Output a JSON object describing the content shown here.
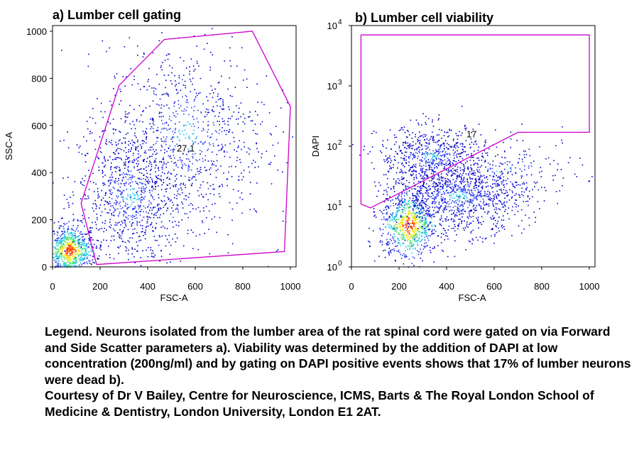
{
  "chart_data": [
    {
      "type": "scatter",
      "title": "a) Lumber cell gating",
      "xlabel": "FSC-A",
      "ylabel": "SSC-A",
      "xlim": [
        0,
        1024
      ],
      "ylim": [
        0,
        1024
      ],
      "xticks": [
        0,
        200,
        400,
        600,
        800,
        1000
      ],
      "yticks": [
        0,
        200,
        400,
        600,
        800,
        1000
      ],
      "xtick_labels": [
        "0",
        "200",
        "400",
        "600",
        "800",
        "1000"
      ],
      "ytick_labels": [
        "0",
        "200",
        "400",
        "600",
        "800",
        "1000"
      ],
      "gate": {
        "label": "27.1",
        "label_at": [
          560,
          490
        ],
        "vertices": [
          [
            185,
            10
          ],
          [
            120,
            270
          ],
          [
            280,
            770
          ],
          [
            470,
            965
          ],
          [
            840,
            1000
          ],
          [
            1000,
            680
          ],
          [
            975,
            65
          ],
          [
            185,
            10
          ]
        ]
      },
      "density_regions": [
        {
          "x_mean": 70,
          "y_mean": 70,
          "x_sd": 55,
          "y_sd": 55,
          "share": 0.3
        },
        {
          "x_mean": 330,
          "y_mean": 300,
          "x_sd": 110,
          "y_sd": 150,
          "share": 0.35
        },
        {
          "x_mean": 560,
          "y_mean": 560,
          "x_sd": 170,
          "y_sd": 190,
          "share": 0.3
        },
        {
          "x_mean": 510,
          "y_mean": 500,
          "x_sd": 330,
          "y_sd": 330,
          "share": 0.05
        }
      ],
      "point_colors": [
        "#0000cc",
        "#2a3df0",
        "#19c3e6",
        "#3ee07a",
        "#f2e600",
        "#ff4400"
      ]
    },
    {
      "type": "scatter",
      "title": "b) Lumber cell viability",
      "xlabel": "FSC-A",
      "ylabel": "DAPI",
      "y_scale": "log",
      "xlim": [
        0,
        1024
      ],
      "ylim": [
        1,
        10000
      ],
      "xticks": [
        0,
        200,
        400,
        600,
        800,
        1000
      ],
      "yticks": [
        1,
        10,
        100,
        1000,
        10000
      ],
      "xtick_labels": [
        "0",
        "200",
        "400",
        "600",
        "800",
        "1000"
      ],
      "ytick_labels": [
        "10^0",
        "10^1",
        "10^2",
        "10^3",
        "10^4"
      ],
      "gate": {
        "label": "17",
        "label_at": [
          505,
          140
        ],
        "vertices": [
          [
            40,
            7000
          ],
          [
            1000,
            7000
          ],
          [
            1000,
            170
          ],
          [
            700,
            170
          ],
          [
            80,
            9.5
          ],
          [
            40,
            11
          ],
          [
            40,
            7000
          ]
        ]
      },
      "density_regions": [
        {
          "x_mean": 240,
          "y_mean": 5,
          "x_sd": 60,
          "y_log_sd": 0.3,
          "share": 0.3
        },
        {
          "x_mean": 450,
          "y_mean": 15,
          "x_sd": 140,
          "y_log_sd": 0.3,
          "share": 0.4
        },
        {
          "x_mean": 330,
          "y_mean": 70,
          "x_sd": 110,
          "y_log_sd": 0.25,
          "share": 0.22
        },
        {
          "x_mean": 650,
          "y_mean": 40,
          "x_sd": 160,
          "y_log_sd": 0.3,
          "share": 0.08
        }
      ],
      "point_colors": [
        "#0000cc",
        "#2a3df0",
        "#19c3e6",
        "#3ee07a",
        "#f2e600",
        "#ff4400"
      ]
    }
  ],
  "legend": {
    "text": "Legend. Neurons isolated from the lumber area of the rat spinal cord were gated on via Forward and Side Scatter parameters a). Viability was determined by the addition of DAPI at low concentration (200ng/ml) and by gating on DAPI positive events shows that 17% of lumber neurons were dead b).",
    "courtesy": "Courtesy of Dr V Bailey, Centre for Neuroscience, ICMS, Barts & The Royal London School of Medicine & Dentistry, London University, London E1 2AT."
  },
  "colors": {
    "gate": "#cc00cc",
    "axis": "#000000"
  }
}
